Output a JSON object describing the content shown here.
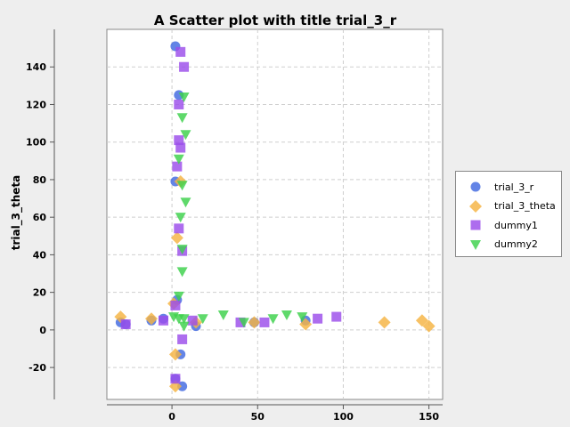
{
  "chart_data": {
    "type": "scatter",
    "title": "A Scatter plot with title trial_3_r",
    "xlabel": "",
    "ylabel": "trial_3_theta",
    "xlim": [
      -38,
      158
    ],
    "ylim": [
      -37,
      160
    ],
    "x_ticks": [
      0,
      50,
      100,
      150
    ],
    "y_ticks": [
      -20,
      0,
      20,
      40,
      60,
      80,
      100,
      120,
      140
    ],
    "grid": true,
    "legend_position": "right",
    "series": [
      {
        "name": "trial_3_r",
        "color": "#4169e1",
        "marker": "circle",
        "points": [
          [
            2,
            151
          ],
          [
            4,
            125
          ],
          [
            2,
            79
          ],
          [
            6,
            -30
          ],
          [
            5,
            -13
          ],
          [
            2,
            -26
          ],
          [
            3,
            16
          ],
          [
            -30,
            4
          ],
          [
            -27,
            3
          ],
          [
            -12,
            5
          ],
          [
            -5,
            6
          ],
          [
            14,
            2
          ],
          [
            48,
            4
          ],
          [
            78,
            5
          ]
        ]
      },
      {
        "name": "trial_3_theta",
        "color": "#f5b342",
        "marker": "diamond",
        "points": [
          [
            -30,
            7
          ],
          [
            -12,
            6
          ],
          [
            2,
            -30
          ],
          [
            2,
            -13
          ],
          [
            3,
            49
          ],
          [
            5,
            79
          ],
          [
            1,
            14
          ],
          [
            14,
            4
          ],
          [
            48,
            4
          ],
          [
            78,
            3
          ],
          [
            124,
            4
          ],
          [
            146,
            5
          ],
          [
            150,
            2
          ]
        ]
      },
      {
        "name": "dummy1",
        "color": "#9b4dea",
        "marker": "square",
        "points": [
          [
            5,
            148
          ],
          [
            7,
            140
          ],
          [
            4,
            120
          ],
          [
            4,
            101
          ],
          [
            5,
            97
          ],
          [
            3,
            87
          ],
          [
            4,
            54
          ],
          [
            6,
            42
          ],
          [
            2,
            13
          ],
          [
            6,
            -5
          ],
          [
            2,
            -26
          ],
          [
            -27,
            3
          ],
          [
            -5,
            5
          ],
          [
            12,
            5
          ],
          [
            40,
            4
          ],
          [
            54,
            4
          ],
          [
            85,
            6
          ],
          [
            96,
            7
          ]
        ]
      },
      {
        "name": "dummy2",
        "color": "#3cd14a",
        "marker": "triangle-down",
        "points": [
          [
            7,
            124
          ],
          [
            6,
            113
          ],
          [
            8,
            104
          ],
          [
            4,
            91
          ],
          [
            6,
            77
          ],
          [
            8,
            68
          ],
          [
            5,
            60
          ],
          [
            6,
            43
          ],
          [
            6,
            31
          ],
          [
            4,
            18
          ],
          [
            1,
            7
          ],
          [
            4,
            6
          ],
          [
            7,
            6
          ],
          [
            7,
            2
          ],
          [
            18,
            6
          ],
          [
            30,
            8
          ],
          [
            42,
            4
          ],
          [
            59,
            6
          ],
          [
            67,
            8
          ],
          [
            76,
            7
          ]
        ]
      }
    ]
  }
}
